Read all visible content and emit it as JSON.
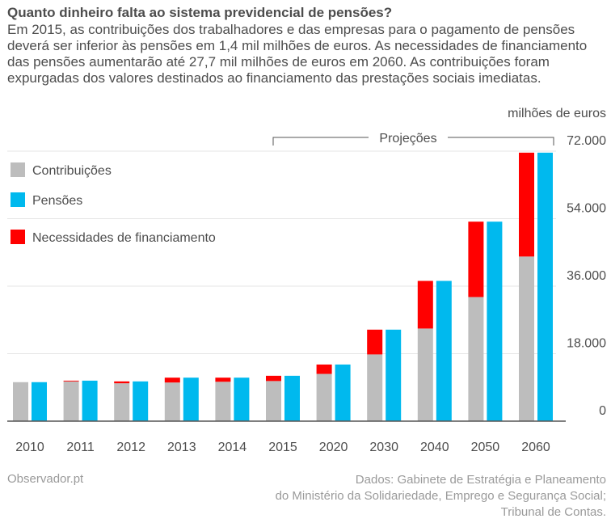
{
  "header": {
    "title": "Quanto dinheiro falta ao sistema previdencial de pensões?",
    "subtitle_lines": [
      "Em 2015, as contribuições dos trabalhadores e das empresas para o pagamento de pensões",
      "deverá ser inferior às pensões em 1,4 mil milhões de euros. As necessidades de financiamento",
      "das pensões aumentarão até 27,7 mil milhões de euros em 2060. As contribuições foram",
      "expurgadas dos valores destinados ao financiamento das prestações sociais imediatas."
    ]
  },
  "footer": {
    "left": "Observador.pt",
    "right_lines": [
      "Dados: Gabinete de Estratégia e Planeamento",
      "do Ministério da Solidariedade, Emprego e Segurança Social;",
      "Tribunal de Contas."
    ]
  },
  "colors": {
    "contribuicoes": "#bdbdbd",
    "pensoes": "#00b9ee",
    "financiamento": "#ff0000",
    "grid": "#e6e6e6",
    "axis": "#555555",
    "text": "#4d4d4d"
  },
  "chart_data": {
    "type": "bar",
    "stacked_with_side_by_side": true,
    "categories": [
      "2010",
      "2011",
      "2012",
      "2013",
      "2014",
      "2015",
      "2020",
      "2030",
      "2040",
      "2050",
      "2060"
    ],
    "series": [
      {
        "name": "Contribuições",
        "key": "contribuicoes",
        "values": [
          10400,
          10600,
          10100,
          10300,
          10500,
          10700,
          12600,
          17800,
          24700,
          33100,
          43900
        ]
      },
      {
        "name": "Necessidades de financiamento",
        "key": "financiamento",
        "values": [
          0,
          200,
          500,
          1300,
          1100,
          1400,
          2500,
          6600,
          12700,
          20100,
          27700
        ]
      },
      {
        "name": "Pensões",
        "key": "pensoes",
        "values": [
          10400,
          10800,
          10600,
          11600,
          11600,
          12100,
          15100,
          24400,
          37400,
          53200,
          71600
        ]
      }
    ],
    "legend": [
      "Contribuições",
      "Pensões",
      "Necessidades de financiamento"
    ],
    "legend_placement": "top-left",
    "projection_label": "Projeções",
    "projection_start_category": "2015",
    "ylabel": "milhões de euros",
    "ylim": [
      0,
      72000
    ],
    "yticks": [
      0,
      18000,
      36000,
      54000,
      72000
    ],
    "ytick_labels": [
      "0",
      "18.000",
      "36.000",
      "54.000",
      "72.000"
    ],
    "grid": true,
    "y_axis_side": "right"
  }
}
